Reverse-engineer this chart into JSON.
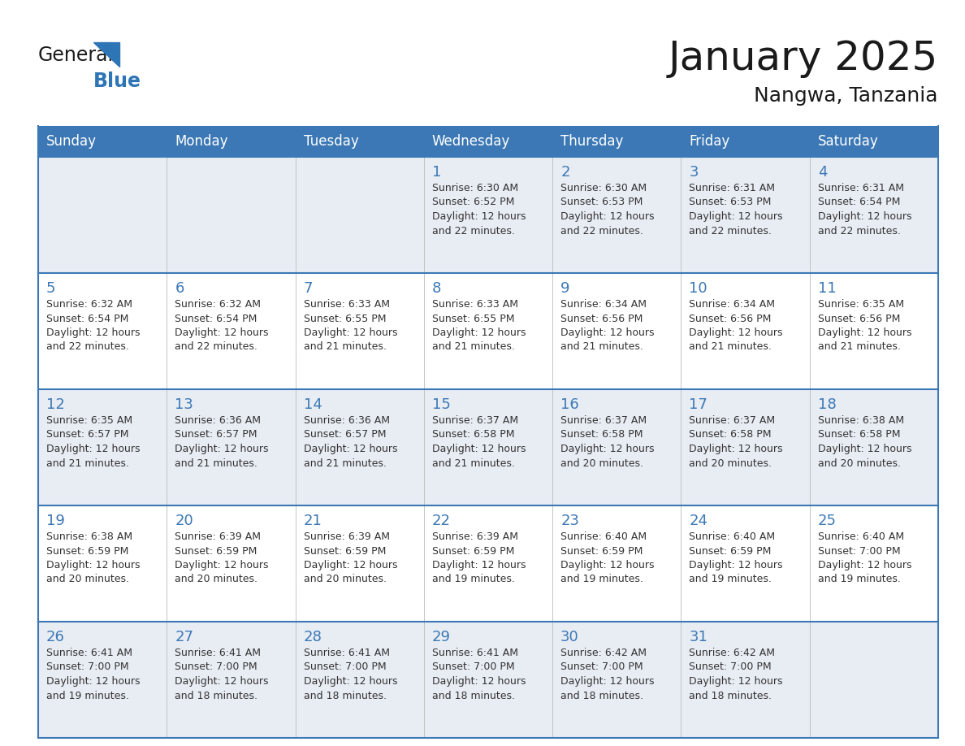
{
  "title": "January 2025",
  "subtitle": "Nangwa, Tanzania",
  "days_of_week": [
    "Sunday",
    "Monday",
    "Tuesday",
    "Wednesday",
    "Thursday",
    "Friday",
    "Saturday"
  ],
  "header_bg": "#3C78B5",
  "header_text": "#FFFFFF",
  "row_bg_odd": "#E8EDF4",
  "row_bg_even": "#FFFFFF",
  "border_color": "#3C78B5",
  "day_num_color": "#3C78B5",
  "text_color": "#333333",
  "title_color": "#1a1a1a",
  "logo_general_color": "#1a1a1a",
  "logo_blue_color": "#2E75B6",
  "logo_triangle_color": "#2E75B6",
  "weeks": [
    [
      {
        "day": null,
        "info": null
      },
      {
        "day": null,
        "info": null
      },
      {
        "day": null,
        "info": null
      },
      {
        "day": 1,
        "info": "Sunrise: 6:30 AM\nSunset: 6:52 PM\nDaylight: 12 hours\nand 22 minutes."
      },
      {
        "day": 2,
        "info": "Sunrise: 6:30 AM\nSunset: 6:53 PM\nDaylight: 12 hours\nand 22 minutes."
      },
      {
        "day": 3,
        "info": "Sunrise: 6:31 AM\nSunset: 6:53 PM\nDaylight: 12 hours\nand 22 minutes."
      },
      {
        "day": 4,
        "info": "Sunrise: 6:31 AM\nSunset: 6:54 PM\nDaylight: 12 hours\nand 22 minutes."
      }
    ],
    [
      {
        "day": 5,
        "info": "Sunrise: 6:32 AM\nSunset: 6:54 PM\nDaylight: 12 hours\nand 22 minutes."
      },
      {
        "day": 6,
        "info": "Sunrise: 6:32 AM\nSunset: 6:54 PM\nDaylight: 12 hours\nand 22 minutes."
      },
      {
        "day": 7,
        "info": "Sunrise: 6:33 AM\nSunset: 6:55 PM\nDaylight: 12 hours\nand 21 minutes."
      },
      {
        "day": 8,
        "info": "Sunrise: 6:33 AM\nSunset: 6:55 PM\nDaylight: 12 hours\nand 21 minutes."
      },
      {
        "day": 9,
        "info": "Sunrise: 6:34 AM\nSunset: 6:56 PM\nDaylight: 12 hours\nand 21 minutes."
      },
      {
        "day": 10,
        "info": "Sunrise: 6:34 AM\nSunset: 6:56 PM\nDaylight: 12 hours\nand 21 minutes."
      },
      {
        "day": 11,
        "info": "Sunrise: 6:35 AM\nSunset: 6:56 PM\nDaylight: 12 hours\nand 21 minutes."
      }
    ],
    [
      {
        "day": 12,
        "info": "Sunrise: 6:35 AM\nSunset: 6:57 PM\nDaylight: 12 hours\nand 21 minutes."
      },
      {
        "day": 13,
        "info": "Sunrise: 6:36 AM\nSunset: 6:57 PM\nDaylight: 12 hours\nand 21 minutes."
      },
      {
        "day": 14,
        "info": "Sunrise: 6:36 AM\nSunset: 6:57 PM\nDaylight: 12 hours\nand 21 minutes."
      },
      {
        "day": 15,
        "info": "Sunrise: 6:37 AM\nSunset: 6:58 PM\nDaylight: 12 hours\nand 21 minutes."
      },
      {
        "day": 16,
        "info": "Sunrise: 6:37 AM\nSunset: 6:58 PM\nDaylight: 12 hours\nand 20 minutes."
      },
      {
        "day": 17,
        "info": "Sunrise: 6:37 AM\nSunset: 6:58 PM\nDaylight: 12 hours\nand 20 minutes."
      },
      {
        "day": 18,
        "info": "Sunrise: 6:38 AM\nSunset: 6:58 PM\nDaylight: 12 hours\nand 20 minutes."
      }
    ],
    [
      {
        "day": 19,
        "info": "Sunrise: 6:38 AM\nSunset: 6:59 PM\nDaylight: 12 hours\nand 20 minutes."
      },
      {
        "day": 20,
        "info": "Sunrise: 6:39 AM\nSunset: 6:59 PM\nDaylight: 12 hours\nand 20 minutes."
      },
      {
        "day": 21,
        "info": "Sunrise: 6:39 AM\nSunset: 6:59 PM\nDaylight: 12 hours\nand 20 minutes."
      },
      {
        "day": 22,
        "info": "Sunrise: 6:39 AM\nSunset: 6:59 PM\nDaylight: 12 hours\nand 19 minutes."
      },
      {
        "day": 23,
        "info": "Sunrise: 6:40 AM\nSunset: 6:59 PM\nDaylight: 12 hours\nand 19 minutes."
      },
      {
        "day": 24,
        "info": "Sunrise: 6:40 AM\nSunset: 6:59 PM\nDaylight: 12 hours\nand 19 minutes."
      },
      {
        "day": 25,
        "info": "Sunrise: 6:40 AM\nSunset: 7:00 PM\nDaylight: 12 hours\nand 19 minutes."
      }
    ],
    [
      {
        "day": 26,
        "info": "Sunrise: 6:41 AM\nSunset: 7:00 PM\nDaylight: 12 hours\nand 19 minutes."
      },
      {
        "day": 27,
        "info": "Sunrise: 6:41 AM\nSunset: 7:00 PM\nDaylight: 12 hours\nand 18 minutes."
      },
      {
        "day": 28,
        "info": "Sunrise: 6:41 AM\nSunset: 7:00 PM\nDaylight: 12 hours\nand 18 minutes."
      },
      {
        "day": 29,
        "info": "Sunrise: 6:41 AM\nSunset: 7:00 PM\nDaylight: 12 hours\nand 18 minutes."
      },
      {
        "day": 30,
        "info": "Sunrise: 6:42 AM\nSunset: 7:00 PM\nDaylight: 12 hours\nand 18 minutes."
      },
      {
        "day": 31,
        "info": "Sunrise: 6:42 AM\nSunset: 7:00 PM\nDaylight: 12 hours\nand 18 minutes."
      },
      {
        "day": null,
        "info": null
      }
    ]
  ]
}
